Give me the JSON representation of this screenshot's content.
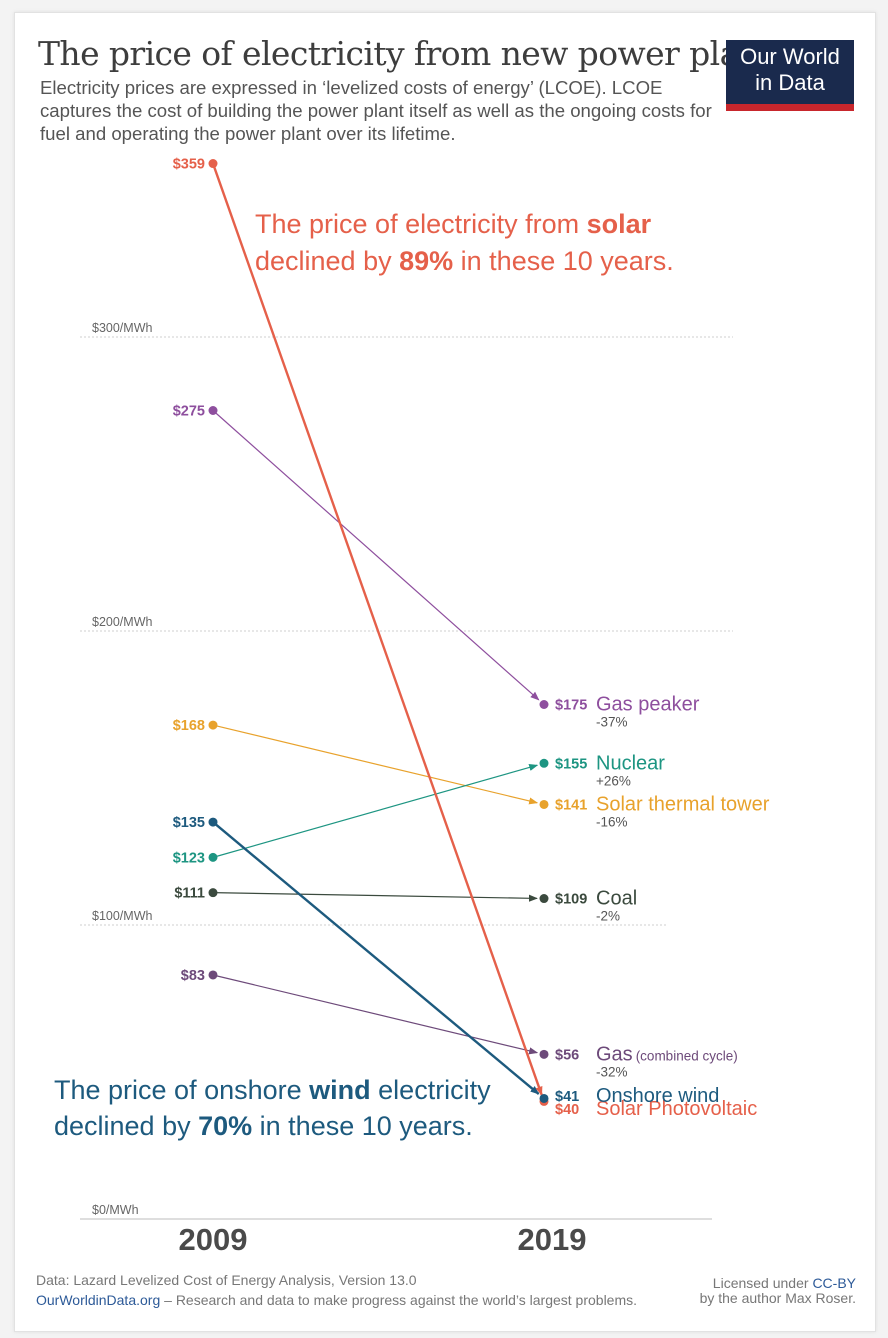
{
  "header": {
    "title": "The price of electricity from new power plants",
    "subtitle": "Electricity prices are expressed in ‘levelized costs of energy’ (LCOE). LCOE captures the cost of building the power plant itself as well as the ongoing costs for fuel and operating the power plant over its lifetime.",
    "logo_line1": "Our World",
    "logo_line2": "in Data"
  },
  "colors": {
    "logo_bg": "#1a2a4d",
    "logo_accent": "#c8262c",
    "solar_pv": "#e5604a",
    "wind": "#1d5a7e",
    "gas_peaker": "#8e4f9e",
    "nuclear": "#1d9582",
    "solar_thermal": "#e8a22c",
    "coal": "#3b4a3e",
    "gas_cc": "#6d4a7a"
  },
  "chart_data": {
    "type": "slope",
    "x": [
      "2009",
      "2019"
    ],
    "ylim": [
      0,
      360
    ],
    "y_ticks": [
      {
        "value": 0,
        "label": "$0/MWh"
      },
      {
        "value": 100,
        "label": "$100/MWh"
      },
      {
        "value": 200,
        "label": "$200/MWh"
      },
      {
        "value": 300,
        "label": "$300/MWh"
      }
    ],
    "series": [
      {
        "key": "solar_pv",
        "name": "Solar Photovoltaic",
        "v2009": 359,
        "v2019": 40,
        "label2009": "$359",
        "label2019": "$40",
        "change": "",
        "color": "#e5604a"
      },
      {
        "key": "gas_peaker",
        "name": "Gas peaker",
        "v2009": 275,
        "v2019": 175,
        "label2009": "$275",
        "label2019": "$175",
        "change": "-37%",
        "color": "#8e4f9e"
      },
      {
        "key": "solar_thermal",
        "name": "Solar thermal tower",
        "v2009": 168,
        "v2019": 141,
        "label2009": "$168",
        "label2019": "$141",
        "change": "-16%",
        "color": "#e8a22c"
      },
      {
        "key": "wind",
        "name": "Onshore wind",
        "v2009": 135,
        "v2019": 41,
        "label2009": "$135",
        "label2019": "$41",
        "change": "",
        "color": "#1d5a7e"
      },
      {
        "key": "nuclear",
        "name": "Nuclear",
        "v2009": 123,
        "v2019": 155,
        "label2009": "$123",
        "label2019": "$155",
        "change": "+26%",
        "color": "#1d9582"
      },
      {
        "key": "coal",
        "name": "Coal",
        "v2009": 111,
        "v2019": 109,
        "label2009": "$111",
        "label2019": "$109",
        "change": "-2%",
        "color": "#3b4a3e"
      },
      {
        "key": "gas_cc",
        "name": "Gas",
        "name_suffix": "(combined cycle)",
        "v2009": 83,
        "v2019": 56,
        "label2009": "$83",
        "label2019": "$56",
        "change": "-32%",
        "color": "#6d4a7a"
      }
    ],
    "annotations": {
      "solar": {
        "pre": "The price of electricity from ",
        "bold1": "solar",
        "mid": "declined by ",
        "bold2": "89%",
        "post": " in these 10 years."
      },
      "wind": {
        "pre": "The price of onshore ",
        "bold1": "wind",
        "post1": " electricity",
        "mid": "declined by ",
        "bold2": "70%",
        "post": " in these 10 years."
      }
    }
  },
  "footer": {
    "source": "Data: Lazard Levelized Cost of Energy Analysis, Version 13.0",
    "site": "OurWorldinData.org",
    "tagline": " – Research and data to make progress against the world’s largest problems.",
    "license_pre": "Licensed under ",
    "license": "CC-BY",
    "author": "by the author Max Roser."
  }
}
